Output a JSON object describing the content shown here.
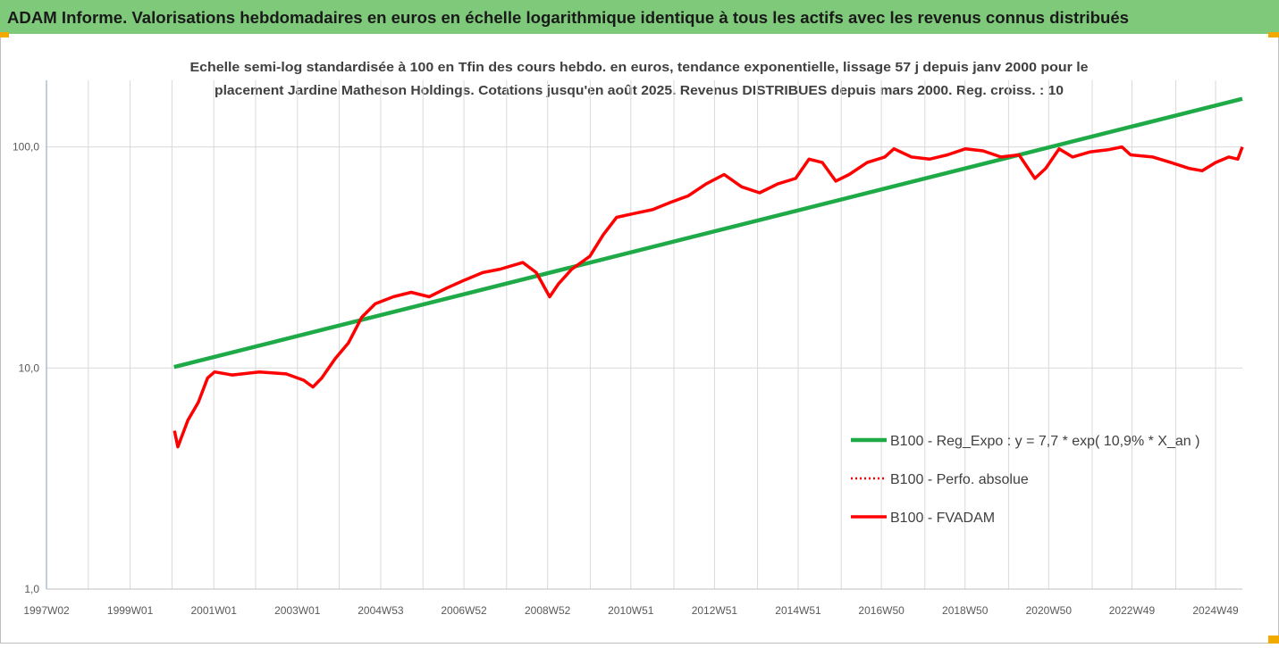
{
  "chart_data": {
    "type": "line",
    "title": "ADAM Informe. Valorisations hebdomadaires en euros en échelle logarithmique identique à tous les actifs avec les revenus connus distribués",
    "subtitle": [
      "Echelle semi-log standardisée à 100 en Tfin des cours hebdo. en euros, tendance exponentielle, lissage 57 j depuis janv 2000 pour le",
      "placement Jardine Matheson Holdings. Cotations jusqu'en août 2025.  Revenus DISTRIBUES depuis mars 2000. Reg. croiss. : 10"
    ],
    "log_y": true,
    "grid": true,
    "legend": "right",
    "xlim": [
      1997,
      2025.59
    ],
    "ylim": [
      1,
      200
    ],
    "yticks": [
      {
        "value": 1,
        "label": "1,0"
      },
      {
        "value": 10,
        "label": "10,0"
      },
      {
        "value": 100,
        "label": "100,0"
      }
    ],
    "xticks": [
      {
        "value": 1997,
        "label": "1997W02"
      },
      {
        "value": 1999,
        "label": "1999W01"
      },
      {
        "value": 2001,
        "label": "2001W01"
      },
      {
        "value": 2003,
        "label": "2003W01"
      },
      {
        "value": 2004.99,
        "label": "2004W53"
      },
      {
        "value": 2006.98,
        "label": "2006W52"
      },
      {
        "value": 2008.98,
        "label": "2008W52"
      },
      {
        "value": 2010.97,
        "label": "2010W51"
      },
      {
        "value": 2012.97,
        "label": "2012W51"
      },
      {
        "value": 2014.97,
        "label": "2014W51"
      },
      {
        "value": 2016.96,
        "label": "2016W50"
      },
      {
        "value": 2018.96,
        "label": "2018W50"
      },
      {
        "value": 2020.96,
        "label": "2020W50"
      },
      {
        "value": 2022.95,
        "label": "2022W49"
      },
      {
        "value": 2024.95,
        "label": "2024W49"
      }
    ],
    "xminorticks": [
      1998,
      2000,
      2002,
      2004,
      2006,
      2008,
      2010,
      2012,
      2014,
      2016,
      2018,
      2020,
      2022,
      2024
    ],
    "x": [
      2000.06,
      2000.14,
      2000.38,
      2000.63,
      2000.85,
      2001.02,
      2001.44,
      2002.09,
      2002.73,
      2003.15,
      2003.37,
      2003.58,
      2003.9,
      2004.22,
      2004.54,
      2004.86,
      2005.29,
      2005.72,
      2006.15,
      2006.57,
      2007.0,
      2007.43,
      2007.85,
      2008.39,
      2008.71,
      2009.03,
      2009.24,
      2009.56,
      2009.99,
      2010.31,
      2010.63,
      2011.06,
      2011.49,
      2011.91,
      2012.34,
      2012.77,
      2013.2,
      2013.62,
      2014.05,
      2014.48,
      2014.91,
      2015.23,
      2015.55,
      2015.87,
      2016.19,
      2016.62,
      2017.04,
      2017.26,
      2017.68,
      2018.11,
      2018.54,
      2018.97,
      2019.39,
      2019.82,
      2020.25,
      2020.63,
      2020.89,
      2021.21,
      2021.53,
      2021.96,
      2022.38,
      2022.71,
      2022.92,
      2023.45,
      2023.88,
      2024.31,
      2024.63,
      2024.95,
      2025.27,
      2025.48,
      2025.59
    ],
    "series": [
      {
        "name": "B100 - Reg_Expo : y = 7,7 * exp( 10,9% *  X_an )",
        "color": "#1faa48",
        "style": "solid",
        "width": 4.5,
        "x": [
          2000.05,
          2025.59
        ],
        "values": [
          10.1,
          165
        ]
      },
      {
        "name": "B100 - Perfo. absolue",
        "color": "#ff0000",
        "style": "dotted",
        "width": 2.5,
        "values": [
          5.2,
          4.4,
          5.8,
          7.0,
          9.0,
          9.6,
          9.3,
          9.6,
          9.4,
          8.8,
          8.2,
          9.0,
          11,
          13,
          17,
          19.5,
          21,
          22,
          21,
          23,
          25,
          27,
          28,
          30,
          27,
          21,
          24,
          28,
          32,
          40,
          48,
          50,
          52,
          56,
          60,
          68,
          75,
          66,
          62,
          68,
          72,
          88,
          85,
          70,
          75,
          85,
          90,
          98,
          90,
          88,
          92,
          98,
          96,
          90,
          92,
          72,
          80,
          98,
          90,
          95,
          97,
          100,
          92,
          90,
          85,
          80,
          78,
          85,
          90,
          88,
          100
        ]
      },
      {
        "name": "B100 - FVADAM",
        "color": "#ff0000",
        "style": "solid",
        "width": 3.5,
        "values": [
          5.2,
          4.4,
          5.8,
          7.0,
          9.0,
          9.6,
          9.3,
          9.6,
          9.4,
          8.8,
          8.2,
          9.0,
          11,
          13,
          17,
          19.5,
          21,
          22,
          21,
          23,
          25,
          27,
          28,
          30,
          27,
          21,
          24,
          28,
          32,
          40,
          48,
          50,
          52,
          56,
          60,
          68,
          75,
          66,
          62,
          68,
          72,
          88,
          85,
          70,
          75,
          85,
          90,
          98,
          90,
          88,
          92,
          98,
          96,
          90,
          92,
          72,
          80,
          98,
          90,
          95,
          97,
          100,
          92,
          90,
          85,
          80,
          78,
          85,
          90,
          88,
          100
        ]
      }
    ]
  }
}
